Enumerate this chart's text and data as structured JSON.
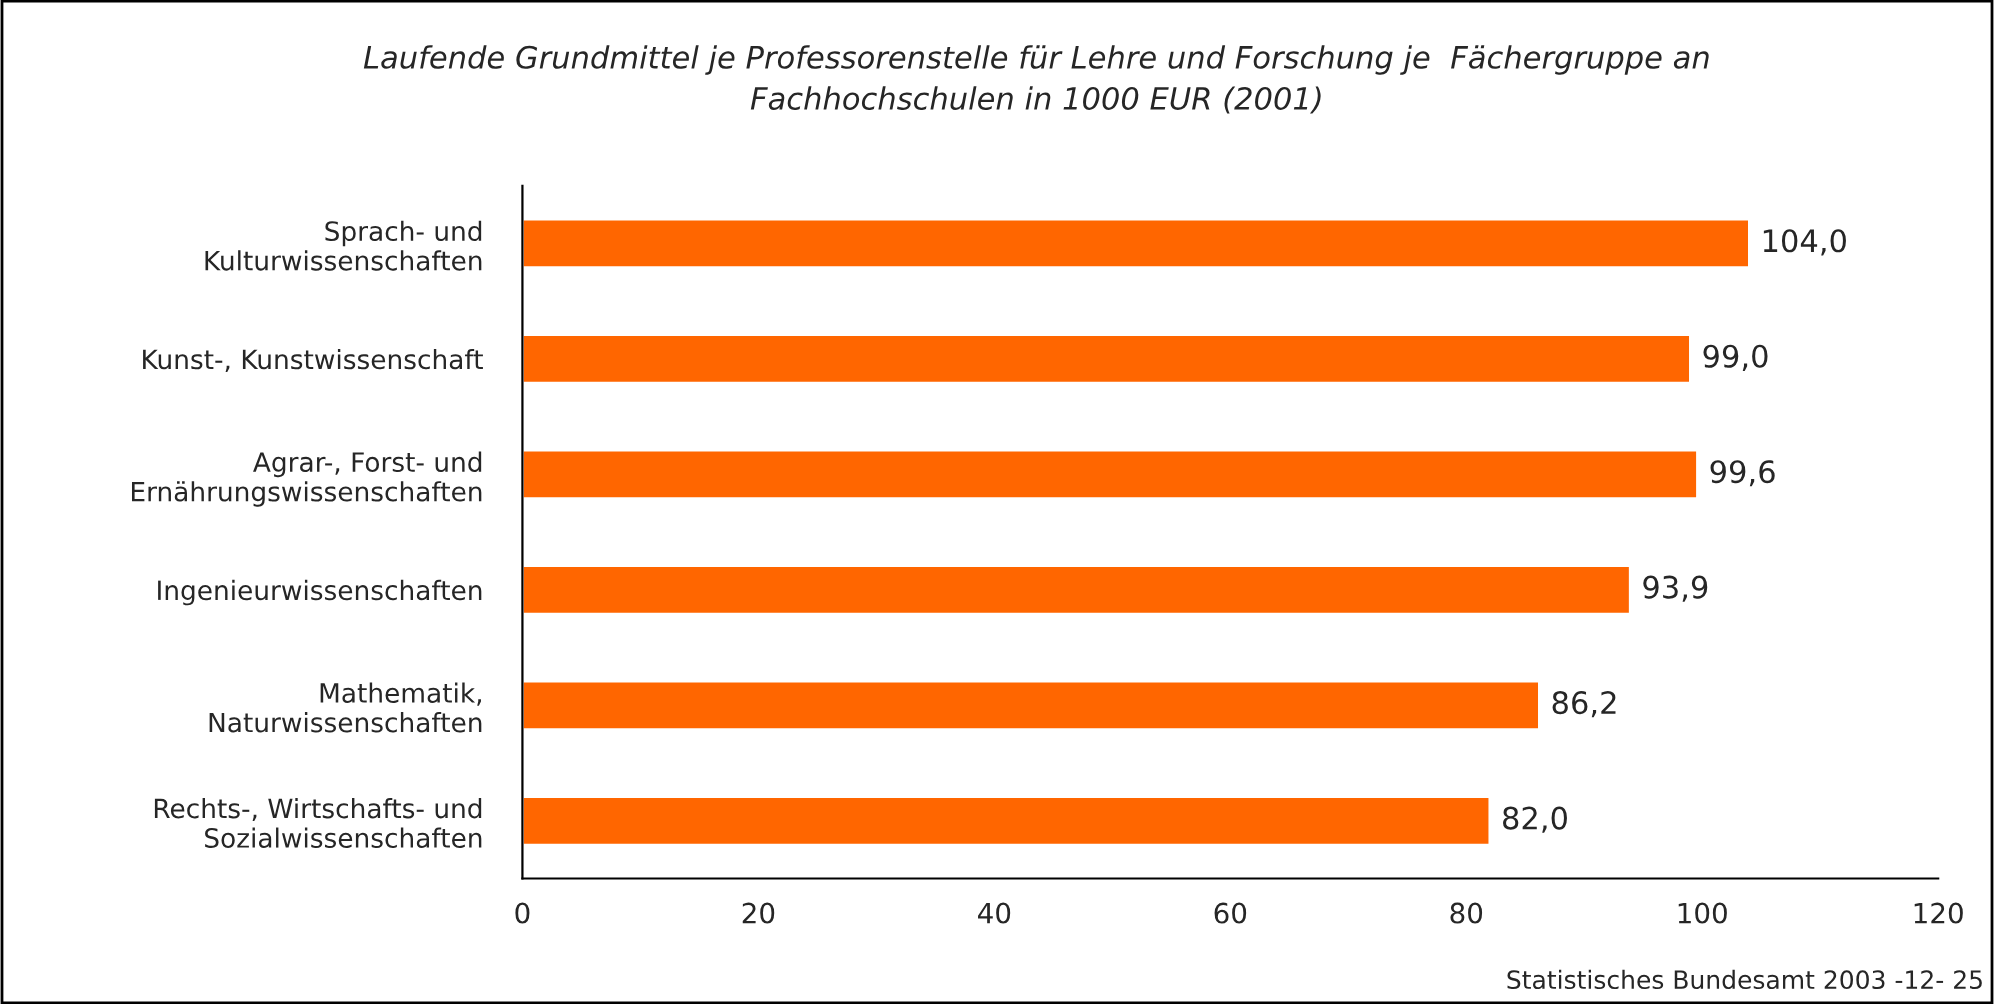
{
  "chart_data": {
    "type": "bar",
    "orientation": "horizontal",
    "title": "Laufende Grundmittel je Professorenstelle für Lehre und Forschung je  Fächergruppe an\nFachhochschulen in 1000 EUR (2001)",
    "categories": [
      "Sprach- und\nKulturwissenschaften",
      "Kunst-, Kunstwissenschaft",
      "Agrar-, Forst- und\nErnährungswissenschaften",
      "Ingenieurwissenschaften",
      "Mathematik,\nNaturwissenschaften",
      "Rechts-, Wirtschafts- und\nSozialwissenschaften"
    ],
    "values": [
      104.0,
      99.0,
      99.6,
      93.9,
      86.2,
      82.0
    ],
    "value_labels": [
      "104,0",
      "99,0",
      "99,6",
      "93,9",
      "86,2",
      "82,0"
    ],
    "color": "#ff6600",
    "xlim": [
      0,
      120
    ],
    "xticks": [
      0,
      20,
      40,
      60,
      80,
      100,
      120
    ],
    "grid": false,
    "annotations": [
      "Statistisches Bundesamt 2003 -12- 25"
    ]
  }
}
